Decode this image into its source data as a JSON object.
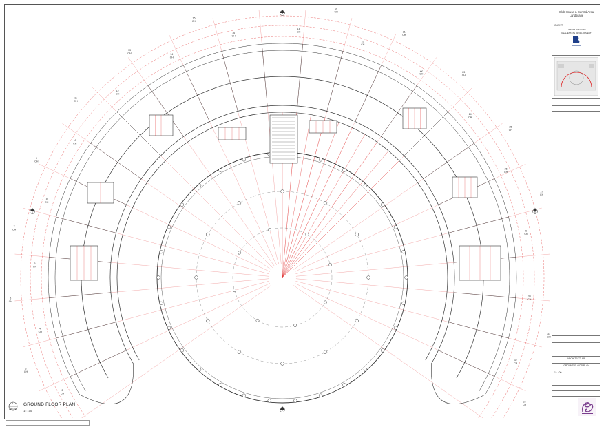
{
  "drawing": {
    "title": "GROUND FLOOR PLAN",
    "number": "1",
    "sheet_ref": "AR-101",
    "scale": "1 : 100"
  },
  "title_block": {
    "project_line1": "Club House & Central Area",
    "project_line2": "Landscape",
    "client_label": "CLIENT:",
    "client_name": "HASHIM BASHOAD",
    "client_company": "REAL ESTATE DEVELOPMENT",
    "discipline": "ARCHITECTURE",
    "sheet_title": "GROUND FLOOR PLAN",
    "scale": "1 : 100"
  },
  "plan": {
    "section_markers": [
      "A",
      "B",
      "C",
      "D"
    ],
    "column_tags": [
      {
        "label": "1",
        "sub": "CH"
      },
      {
        "label": "2",
        "sub": "CH"
      },
      {
        "label": "3",
        "sub": "CH"
      },
      {
        "label": "4",
        "sub": "CH"
      },
      {
        "label": "5",
        "sub": "CH"
      },
      {
        "label": "6",
        "sub": "CH"
      },
      {
        "label": "7",
        "sub": "CH"
      },
      {
        "label": "8",
        "sub": "CH"
      },
      {
        "label": "9",
        "sub": "CH"
      },
      {
        "label": "10",
        "sub": "CH"
      },
      {
        "label": "11",
        "sub": "CH"
      },
      {
        "label": "12",
        "sub": "CH"
      },
      {
        "label": "13",
        "sub": "CH"
      },
      {
        "label": "14",
        "sub": "CH"
      },
      {
        "label": "15",
        "sub": "CH"
      },
      {
        "label": "16",
        "sub": "CH"
      },
      {
        "label": "17",
        "sub": "CH"
      },
      {
        "label": "18",
        "sub": "CH"
      },
      {
        "label": "19",
        "sub": "CH"
      },
      {
        "label": "20",
        "sub": "CH"
      },
      {
        "label": "21",
        "sub": "CH"
      },
      {
        "label": "22",
        "sub": "CH"
      },
      {
        "label": "23",
        "sub": "CH"
      },
      {
        "label": "24",
        "sub": "CH"
      },
      {
        "label": "25",
        "sub": "CH"
      },
      {
        "label": "26",
        "sub": "CH"
      },
      {
        "label": "27",
        "sub": "CH"
      },
      {
        "label": "28",
        "sub": "CH"
      },
      {
        "label": "29",
        "sub": "CH"
      },
      {
        "label": "30",
        "sub": "CH"
      },
      {
        "label": "31",
        "sub": "CH"
      },
      {
        "label": "32",
        "sub": "CH"
      },
      {
        "label": "33",
        "sub": "CH"
      },
      {
        "label": "34",
        "sub": "CH"
      }
    ]
  },
  "colors": {
    "line": "#333333",
    "grid_red": "#e03030",
    "logo": "#7b3f8f",
    "logo_blue": "#1f3f8a"
  }
}
